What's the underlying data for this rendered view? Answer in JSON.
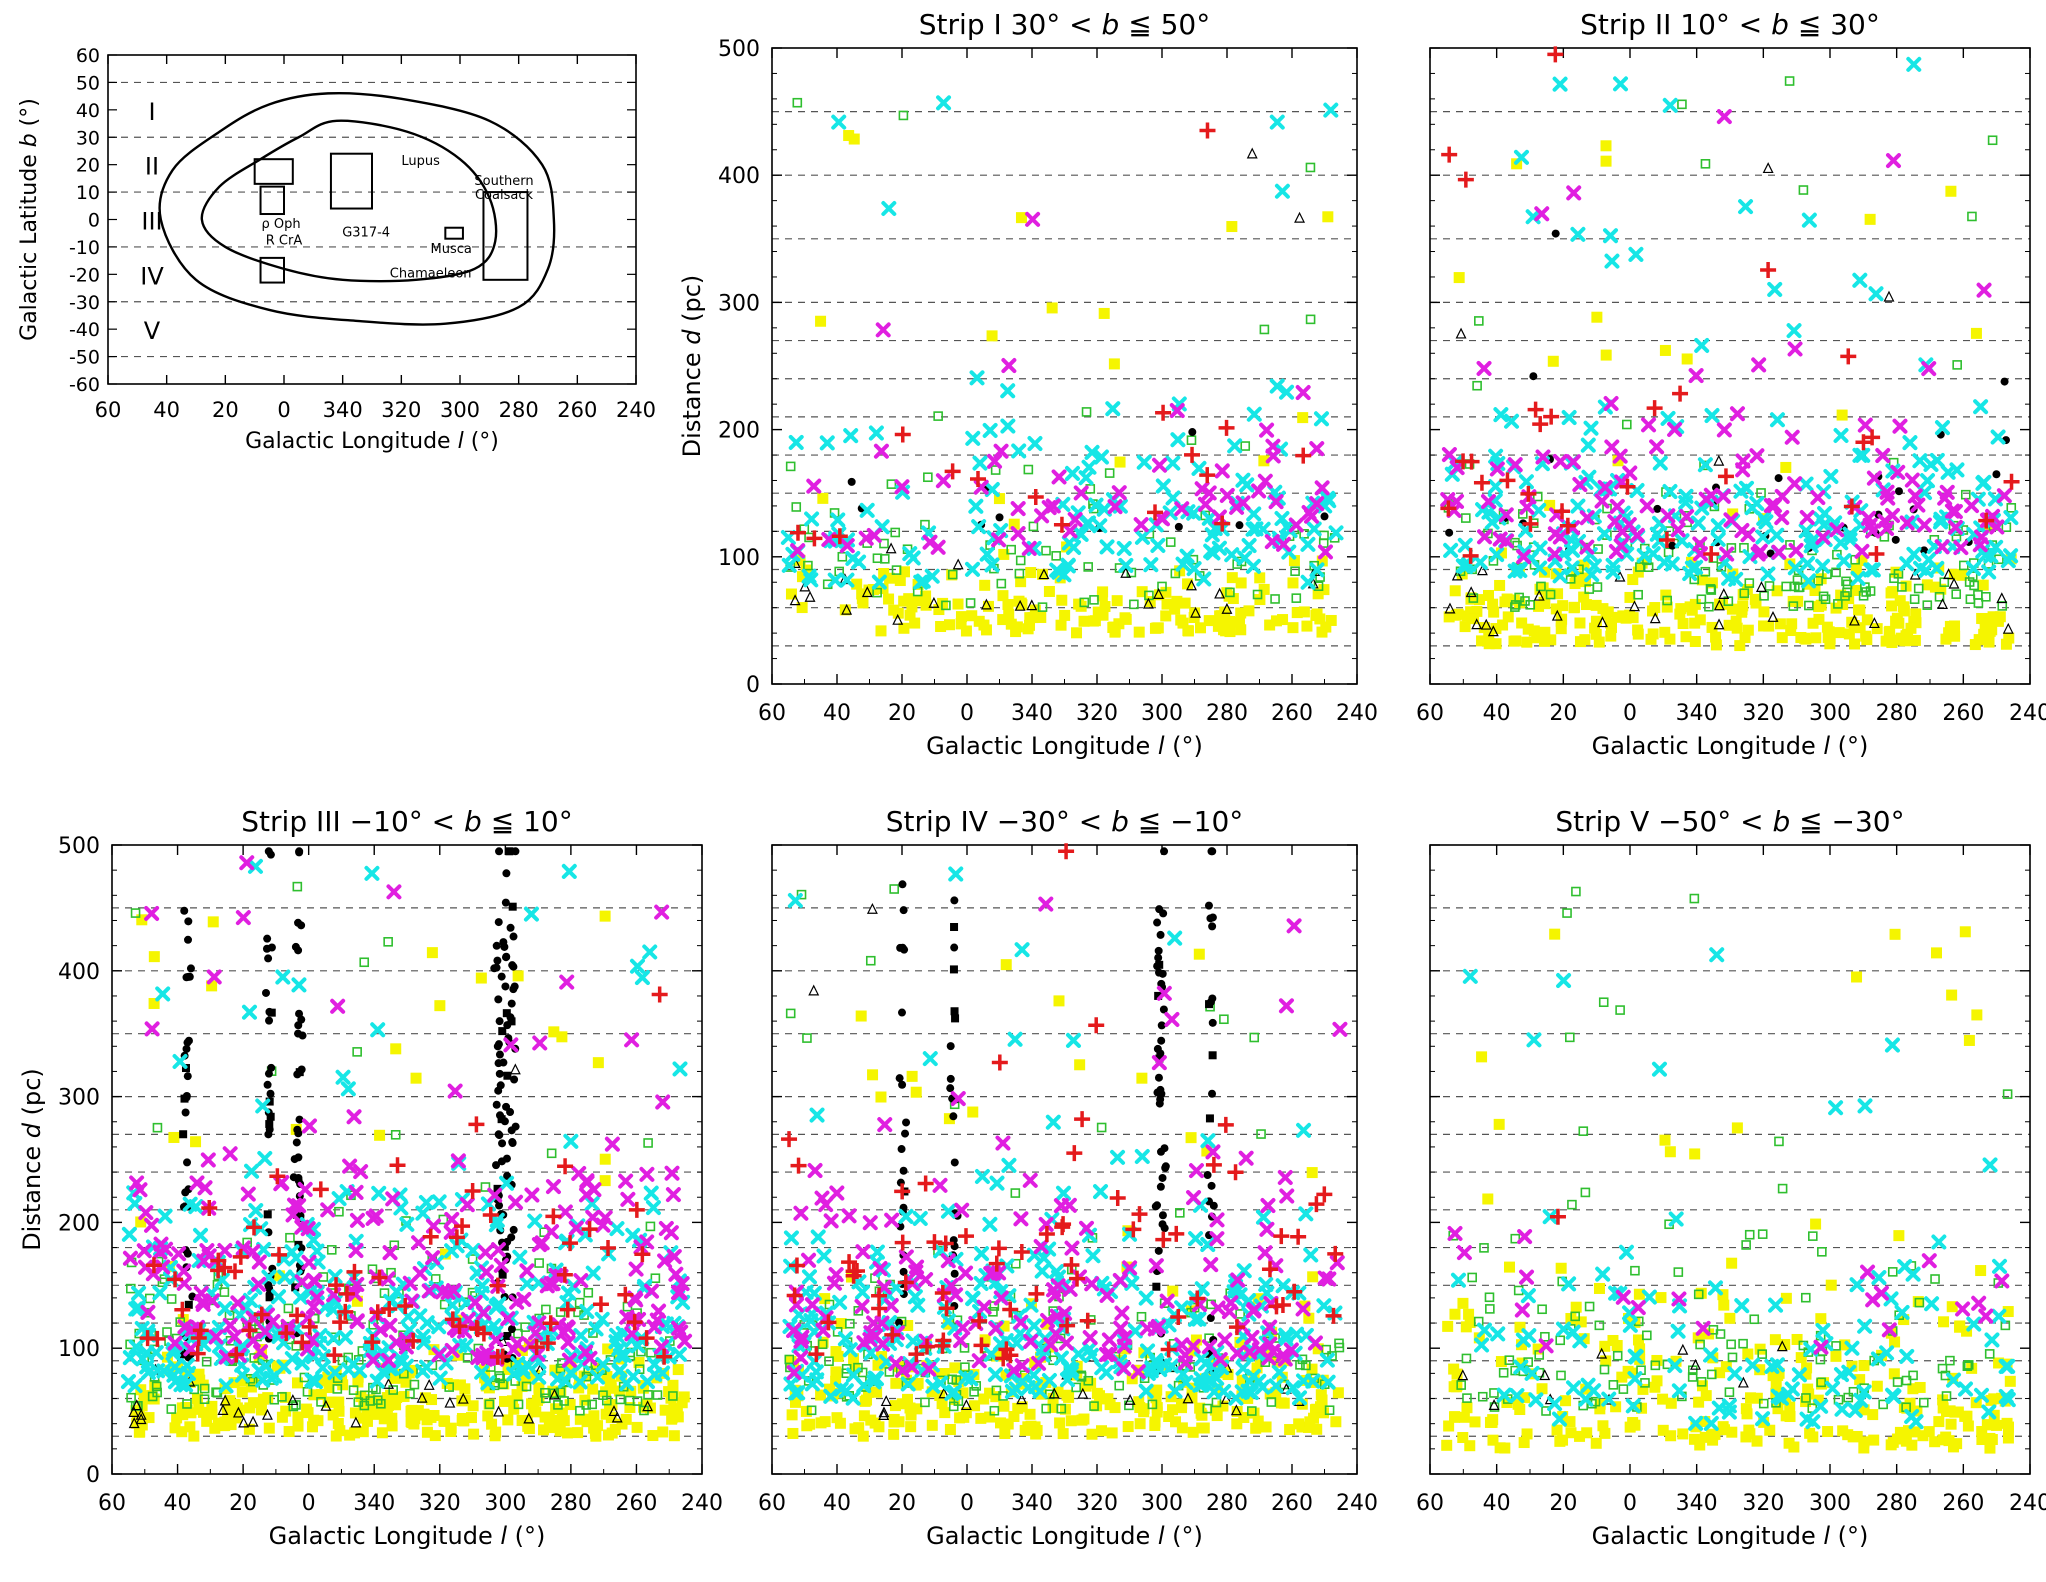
{
  "colors": {
    "black_marks": "#000000",
    "red_plus": "#e41a1c",
    "magenta_x": "#e01fe0",
    "cyan_x": "#16e6e6",
    "green_open_square": "#2fbf2f",
    "yellow_square": "#f5f500",
    "gridline": "#555555"
  },
  "chart_data": [
    {
      "type": "diagram",
      "xlabel": "Galactic Longitude l (°)",
      "ylabel": "Galactic Latitude b (°)",
      "xticks": [
        "60",
        "40",
        "20",
        "0",
        "340",
        "320",
        "300",
        "280",
        "260",
        "240"
      ],
      "yticks": [
        "60",
        "50",
        "40",
        "30",
        "20",
        "10",
        "0",
        "-10",
        "-20",
        "-30",
        "-40",
        "-50",
        "-60"
      ],
      "xlim": [
        60,
        -120
      ],
      "ylim": [
        -60,
        60
      ],
      "strip_boundaries_b": [
        50,
        30,
        10,
        -10,
        -30,
        -50
      ],
      "strip_labels": [
        "I",
        "II",
        "III",
        "IV",
        "V"
      ],
      "region_labels": [
        "Lupus",
        "ρ Oph",
        "Southern Coalsack",
        "G317-4",
        "Musca",
        "R CrA",
        "Chamaeleon"
      ]
    },
    {
      "type": "scatter",
      "title": "Strip I    30° < b ≦ 50°",
      "xlabel": "Galactic Longitude l (°)",
      "ylabel": "Distance d (pc)",
      "xticks": [
        "60",
        "40",
        "20",
        "0",
        "340",
        "320",
        "300",
        "280",
        "260",
        "240"
      ],
      "yticks": [
        "0",
        "100",
        "200",
        "300",
        "400",
        "500"
      ],
      "xlim": [
        60,
        -120
      ],
      "ylim": [
        0,
        500
      ],
      "gridlines_d": [
        30,
        60,
        90,
        120,
        150,
        180,
        210,
        240,
        270,
        300,
        350,
        400,
        450
      ],
      "grid": "dashed horizontal",
      "legend": "none"
    },
    {
      "type": "scatter",
      "title": "Strip II    10° < b ≦ 30°",
      "xlabel": "Galactic Longitude l (°)",
      "xticks": [
        "60",
        "40",
        "20",
        "0",
        "340",
        "320",
        "300",
        "280",
        "260",
        "240"
      ],
      "xlim": [
        60,
        -120
      ],
      "ylim": [
        0,
        500
      ],
      "gridlines_d": [
        30,
        60,
        90,
        120,
        150,
        180,
        210,
        240,
        270,
        300,
        350,
        400,
        450
      ],
      "grid": "dashed horizontal",
      "legend": "none"
    },
    {
      "type": "scatter",
      "title": "Strip III    −10° < b ≦ 10°",
      "xlabel": "Galactic Longitude l (°)",
      "ylabel": "Distance d (pc)",
      "xticks": [
        "60",
        "40",
        "20",
        "0",
        "340",
        "320",
        "300",
        "280",
        "260",
        "240"
      ],
      "yticks": [
        "0",
        "100",
        "200",
        "300",
        "400",
        "500"
      ],
      "xlim": [
        60,
        -120
      ],
      "ylim": [
        0,
        500
      ],
      "gridlines_d": [
        30,
        60,
        90,
        120,
        150,
        180,
        210,
        240,
        270,
        300,
        350,
        400,
        450
      ],
      "grid": "dashed horizontal",
      "legend": "none"
    },
    {
      "type": "scatter",
      "title": "Strip IV    −30° < b ≦ −10°",
      "xlabel": "Galactic Longitude l (°)",
      "xticks": [
        "60",
        "40",
        "20",
        "0",
        "340",
        "320",
        "300",
        "280",
        "260",
        "240"
      ],
      "xlim": [
        60,
        -120
      ],
      "ylim": [
        0,
        500
      ],
      "gridlines_d": [
        30,
        60,
        90,
        120,
        150,
        180,
        210,
        240,
        270,
        300,
        350,
        400,
        450
      ],
      "grid": "dashed horizontal",
      "legend": "none"
    },
    {
      "type": "scatter",
      "title": "Strip V    −50° < b ≦ −30°",
      "xlabel": "Galactic Longitude l (°)",
      "xticks": [
        "60",
        "40",
        "20",
        "0",
        "340",
        "320",
        "300",
        "280",
        "260",
        "240"
      ],
      "xlim": [
        60,
        -120
      ],
      "ylim": [
        0,
        500
      ],
      "gridlines_d": [
        30,
        60,
        90,
        120,
        150,
        180,
        210,
        240,
        270,
        300,
        350,
        400,
        450
      ],
      "grid": "dashed horizontal",
      "legend": "none"
    }
  ]
}
